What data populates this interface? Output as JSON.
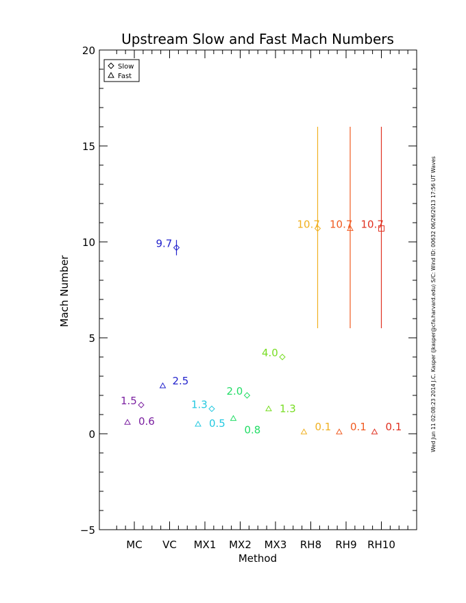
{
  "chart_data": {
    "type": "scatter",
    "title": "Upstream Slow and Fast Mach Numbers",
    "xlabel": "Method",
    "ylabel": "Mach Number",
    "ylim": [
      -5,
      20
    ],
    "yticks": [
      -5,
      0,
      5,
      10,
      15,
      20
    ],
    "categories": [
      "MC",
      "VC",
      "MX1",
      "MX2",
      "MX3",
      "RH8",
      "RH9",
      "RH10"
    ],
    "grid": false,
    "legend_position": "top-left",
    "side_note": "Wed Jun 11 02:08:23 2014  J.C. Kasper (jkasper@cfa.harvard.edu)  S/C: Wind ID: 00632 06/26/2013  17:56 UT Waves",
    "legend": [
      {
        "name": "Slow",
        "marker": "diamond"
      },
      {
        "name": "Fast",
        "marker": "triangle"
      }
    ],
    "series": [
      {
        "name": "Slow",
        "marker": "diamond",
        "points": [
          {
            "category": "MC",
            "value": 1.5,
            "label": "1.5",
            "color": "#7a1fa0"
          },
          {
            "category": "VC",
            "value": 9.7,
            "label": "9.7",
            "color": "#2222cc",
            "err_low": 9.3,
            "err_high": 10.1
          },
          {
            "category": "MX1",
            "value": 1.3,
            "label": "1.3",
            "color": "#22c8e0"
          },
          {
            "category": "MX2",
            "value": 2.0,
            "label": "2.0",
            "color": "#22dd66"
          },
          {
            "category": "MX3",
            "value": 4.0,
            "label": "4.0",
            "color": "#77dd22"
          },
          {
            "category": "RH8",
            "value": 10.7,
            "label": "10.7",
            "color": "#f0b020",
            "err_low": 5.5,
            "err_high": 16.0
          }
        ]
      },
      {
        "name": "Fast",
        "marker": "triangle",
        "points": [
          {
            "category": "MC",
            "value": 0.6,
            "label": "0.6",
            "color": "#7a1fa0"
          },
          {
            "category": "VC",
            "value": 2.5,
            "label": "2.5",
            "color": "#2222cc"
          },
          {
            "category": "MX1",
            "value": 0.5,
            "label": "0.5",
            "color": "#22c8e0"
          },
          {
            "category": "MX2",
            "value": 0.8,
            "label": "0.8",
            "color": "#22dd66"
          },
          {
            "category": "MX3",
            "value": 1.3,
            "label": "1.3",
            "color": "#77dd22"
          },
          {
            "category": "RH8",
            "value": 0.1,
            "label": "0.1",
            "color": "#f0b020"
          },
          {
            "category": "RH9",
            "value": 0.1,
            "label": "0.1",
            "color": "#f05a20"
          },
          {
            "category": "RH10",
            "value": 0.1,
            "label": "0.1",
            "color": "#e03020"
          }
        ]
      },
      {
        "name": "",
        "marker": "triangle",
        "points": [
          {
            "category": "RH9",
            "value": 10.7,
            "label": "10.7",
            "color": "#f05a20",
            "err_low": 5.5,
            "err_high": 16.0
          }
        ]
      },
      {
        "name": "",
        "marker": "square",
        "points": [
          {
            "category": "RH10",
            "value": 10.7,
            "label": "10.7",
            "color": "#e03020",
            "err_low": 5.5,
            "err_high": 16.0
          }
        ]
      }
    ]
  }
}
